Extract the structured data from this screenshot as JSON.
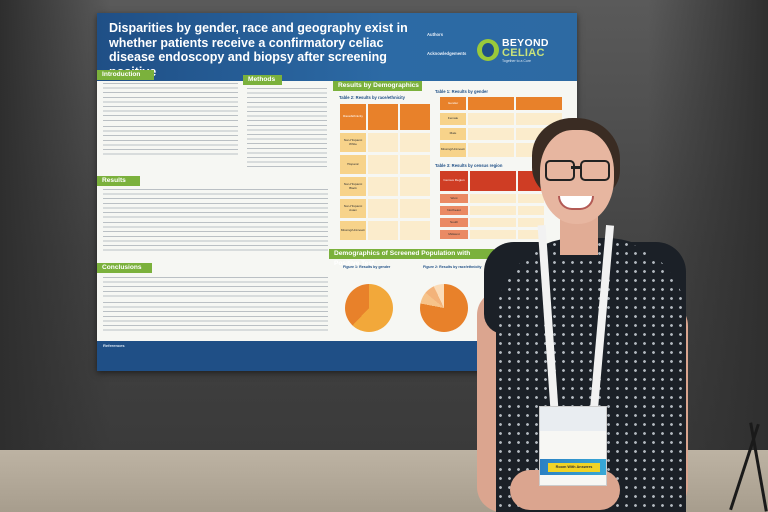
{
  "poster": {
    "title": "Disparities by gender, race and geography exist in whether patients receive a confirmatory celiac disease endoscopy and biopsy after screening positive",
    "authors_label": "Authors",
    "ack_label": "Acknowledgements",
    "logo": {
      "brand_top": "BEYOND",
      "brand_bottom": "CELIAC",
      "tagline": "Together to a Cure"
    },
    "colors": {
      "header": "#1f4f86",
      "section": "#7bb13c",
      "orange": "#e8812a",
      "red": "#cf3d24"
    },
    "sections": {
      "introduction": "Introduction",
      "methods": "Methods",
      "results_demo": "Results by Demographics",
      "results": "Results",
      "conclusions": "Conclusions",
      "demographics": "Demographics of Screened Population with Positive Test",
      "references": "References"
    },
    "tables": {
      "t2": "Table 2: Results by race/ethnicity",
      "t1": "Table 1: Results by gender",
      "t3": "Table 3: Results by census region"
    },
    "table2_rows": [
      "Race/Ethnicity",
      "Non-Hispanic White",
      "Hispanic",
      "Non-Hispanic Black",
      "Non-Hispanic Asian",
      "Missing/Unknown"
    ],
    "table1_rows": [
      "Gender",
      "Female",
      "Male",
      "Missing/Unknown"
    ],
    "table3_rows": [
      "Census Region",
      "West",
      "Northeast",
      "South",
      "Midwest"
    ],
    "figures": {
      "f1": "Figure 1: Results by gender",
      "f2": "Figure 2: Results by race/ethnicity"
    }
  },
  "badge": {
    "strip_text": "Room With Answers"
  }
}
